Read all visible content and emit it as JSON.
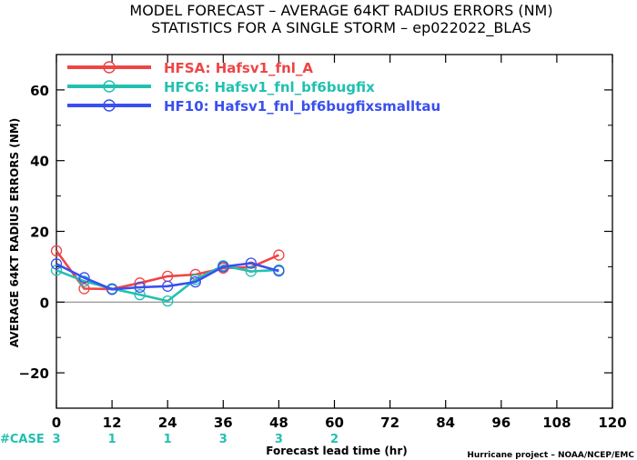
{
  "title": {
    "line1": "MODEL FORECAST – AVERAGE 64KT RADIUS ERRORS (NM)",
    "line2": "STATISTICS FOR A SINGLE STORM – ep022022_BLAS"
  },
  "footer": {
    "case_label": "#CASE",
    "credit": "Hurricane project – NOAA/NCEP/EMC"
  },
  "colors": {
    "background": "#ffffff",
    "zero_line": "#888888"
  },
  "chart_data": {
    "type": "line",
    "xlabel": "Forecast lead time (hr)",
    "ylabel": "AVERAGE 64KT RADIUS ERRORS (NM)",
    "xlim": [
      0,
      120
    ],
    "ylim": [
      -30,
      70
    ],
    "x_ticks": [
      0,
      12,
      24,
      36,
      48,
      60,
      72,
      84,
      96,
      108,
      120
    ],
    "x_tick_labels": [
      "0",
      "12",
      "24",
      "36",
      "48",
      "60",
      "72",
      "84",
      "96",
      "108",
      "120"
    ],
    "y_ticks": [
      -20,
      0,
      20,
      40,
      60
    ],
    "y_tick_labels": [
      "−20",
      "0",
      "20",
      "40",
      "60"
    ],
    "grid": false,
    "legend_position": "top-left",
    "zero_line": 0,
    "case_counts": [
      {
        "x": 0,
        "label": "3"
      },
      {
        "x": 12,
        "label": "1"
      },
      {
        "x": 24,
        "label": "1"
      },
      {
        "x": 36,
        "label": "3"
      },
      {
        "x": 48,
        "label": "3"
      },
      {
        "x": 60,
        "label": "2"
      }
    ],
    "series": [
      {
        "name": "HFSA: Hafsv1_fnl_A",
        "color": "#ee4545",
        "x": [
          0,
          6,
          12,
          18,
          24,
          30,
          36,
          42,
          48
        ],
        "values": [
          14.5,
          3.8,
          3.7,
          5.4,
          7.3,
          7.8,
          9.6,
          9.9,
          13.3
        ]
      },
      {
        "name": "HFC6: Hafsv1_fnl_bf6bugfix",
        "color": "#22c0b0",
        "x": [
          0,
          6,
          12,
          18,
          24,
          30,
          36,
          42,
          48
        ],
        "values": [
          9.0,
          5.9,
          3.8,
          2.1,
          0.3,
          6.4,
          10.3,
          8.7,
          9.1
        ]
      },
      {
        "name": "HF10: Hafsv1_fnl_bf6bugfixsmalltau",
        "color": "#3a4ff0",
        "x": [
          0,
          6,
          12,
          18,
          24,
          30,
          36,
          42,
          48
        ],
        "values": [
          10.8,
          6.9,
          3.6,
          4.2,
          4.5,
          5.7,
          10.0,
          11.0,
          8.8
        ]
      }
    ]
  }
}
